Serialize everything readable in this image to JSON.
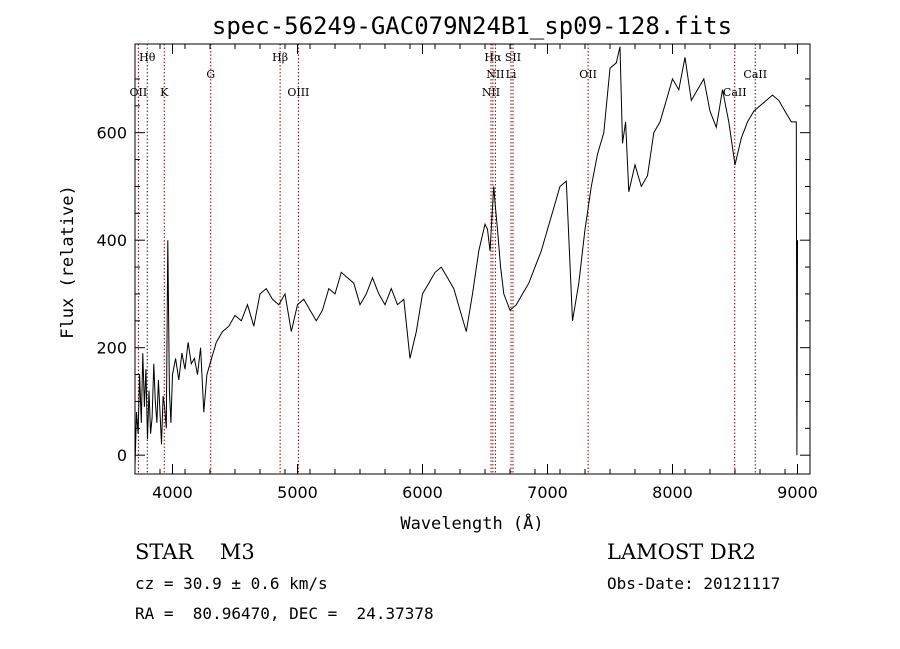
{
  "chart_data": {
    "type": "line",
    "title": "spec-56249-GAC079N24B1_sp09-128.fits",
    "xlabel": "Wavelength (Å)",
    "ylabel": "Flux (relative)",
    "xlim": [
      3700,
      9100
    ],
    "ylim": [
      -35,
      765
    ],
    "xticks": [
      4000,
      5000,
      6000,
      7000,
      8000,
      9000
    ],
    "yticks": [
      0,
      200,
      400,
      600
    ],
    "grid": false,
    "line_color": "#000000",
    "marker_color": "#8b0000",
    "series": [
      {
        "x": [
          3700,
          3712,
          3725,
          3737,
          3750,
          3762,
          3775,
          3787,
          3800,
          3812,
          3825,
          3837,
          3850,
          3862,
          3875,
          3887,
          3900,
          3912,
          3925,
          3937,
          3950,
          3962,
          3975,
          3987,
          4000,
          4025,
          4050,
          4075,
          4100,
          4125,
          4150,
          4175,
          4200,
          4225,
          4250,
          4275,
          4300,
          4325,
          4350,
          4375,
          4400,
          4450,
          4500,
          4550,
          4600,
          4650,
          4700,
          4750,
          4800,
          4850,
          4900,
          4950,
          5000,
          5050,
          5100,
          5150,
          5200,
          5250,
          5300,
          5350,
          5400,
          5450,
          5500,
          5550,
          5600,
          5650,
          5700,
          5750,
          5800,
          5850,
          5900,
          5950,
          6000,
          6050,
          6100,
          6150,
          6200,
          6250,
          6300,
          6350,
          6400,
          6450,
          6500,
          6520,
          6540,
          6560,
          6565,
          6570,
          6580,
          6600,
          6625,
          6650,
          6700,
          6750,
          6800,
          6850,
          6900,
          6950,
          7000,
          7050,
          7100,
          7150,
          7200,
          7250,
          7300,
          7350,
          7400,
          7450,
          7500,
          7550,
          7580,
          7600,
          7625,
          7650,
          7700,
          7750,
          7800,
          7850,
          7900,
          7950,
          8000,
          8050,
          8100,
          8150,
          8200,
          8250,
          8300,
          8350,
          8400,
          8450,
          8500,
          8550,
          8600,
          8650,
          8700,
          8750,
          8800,
          8850,
          8900,
          8950,
          8990,
          8995,
          9000
        ],
        "y": [
          -20,
          80,
          40,
          150,
          60,
          190,
          90,
          160,
          30,
          120,
          40,
          70,
          170,
          100,
          60,
          140,
          80,
          20,
          110,
          90,
          50,
          400,
          120,
          60,
          150,
          180,
          140,
          190,
          160,
          210,
          170,
          180,
          150,
          200,
          80,
          150,
          170,
          190,
          210,
          220,
          230,
          240,
          260,
          250,
          280,
          240,
          300,
          310,
          290,
          280,
          300,
          230,
          280,
          290,
          270,
          250,
          270,
          310,
          300,
          340,
          330,
          320,
          280,
          300,
          330,
          300,
          280,
          310,
          280,
          290,
          180,
          230,
          300,
          320,
          340,
          350,
          330,
          310,
          270,
          230,
          300,
          380,
          430,
          420,
          380,
          460,
          480,
          500,
          470,
          420,
          350,
          300,
          270,
          280,
          300,
          320,
          350,
          380,
          420,
          460,
          500,
          510,
          250,
          320,
          420,
          500,
          560,
          600,
          720,
          730,
          760,
          580,
          620,
          490,
          540,
          500,
          520,
          600,
          620,
          660,
          700,
          680,
          740,
          660,
          680,
          700,
          640,
          610,
          680,
          620,
          540,
          590,
          620,
          640,
          650,
          660,
          670,
          660,
          640,
          620,
          620,
          0,
          400
        ]
      }
    ],
    "line_markers": [
      {
        "label": "Hθ",
        "x": 3798,
        "row": 1
      },
      {
        "label": "OII",
        "x": 3727,
        "row": 3
      },
      {
        "label": "K",
        "x": 3934,
        "row": 3
      },
      {
        "label": "G",
        "x": 4306,
        "row": 2
      },
      {
        "label": "Hβ",
        "x": 4861,
        "row": 1
      },
      {
        "label": "OIII",
        "x": 5007,
        "row": 3
      },
      {
        "label": "Hα",
        "x": 6563,
        "row": 1
      },
      {
        "label": "SII",
        "x": 6724,
        "row": 1
      },
      {
        "label": "NII",
        "x": 6583,
        "row": 2
      },
      {
        "label": "Li",
        "x": 6708,
        "row": 2
      },
      {
        "label": "NII",
        "x": 6548,
        "row": 3
      },
      {
        "label": "OII",
        "x": 7325,
        "row": 2
      },
      {
        "label": "CaII",
        "x": 8662,
        "row": 2
      },
      {
        "label": "CaII",
        "x": 8498,
        "row": 3
      }
    ]
  },
  "info": {
    "class_line": "STAR    M3",
    "survey": "LAMOST DR2",
    "cz": "cz = 30.9 ± 0.6 km/s",
    "obs_date": "Obs-Date: 20121117",
    "coords": "RA =  80.96470, DEC =  24.37378"
  }
}
